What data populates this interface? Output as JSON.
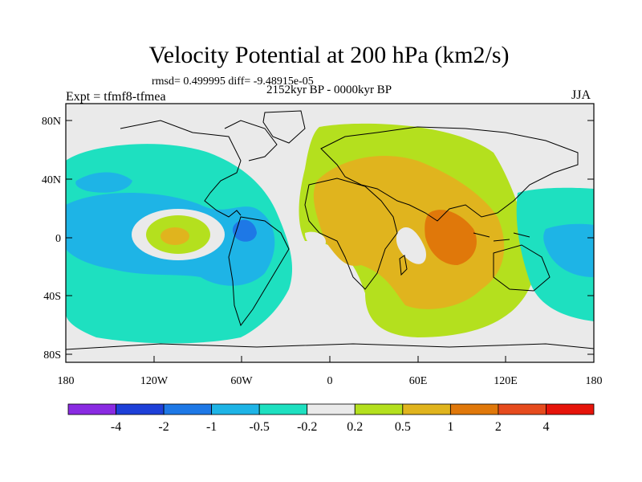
{
  "title": "Velocity Potential at 200 hPa (km2/s)",
  "stats": "rmsd= 0.499995 diff= -9.48915e-05",
  "experiment": "Expt = tfmf8-tfmea",
  "period": "2152kyr BP - 0000kyr BP",
  "season": "JJA",
  "y_ticks": [
    "80N",
    "40N",
    "0",
    "40S",
    "80S"
  ],
  "x_ticks": [
    "180",
    "120W",
    "60W",
    "0",
    "60E",
    "120E",
    "180"
  ],
  "colorbar": {
    "colors": [
      "#8a2be2",
      "#1e40d8",
      "#1e78e6",
      "#1eb4e6",
      "#1ee0c0",
      "#eaeaea",
      "#b4e01e",
      "#e0b41e",
      "#e0780a",
      "#e64b1e",
      "#e6140a"
    ],
    "labels": [
      "-4",
      "-2",
      "-1",
      "-0.5",
      "-0.2",
      "0.2",
      "0.5",
      "1",
      "2",
      "4"
    ]
  }
}
